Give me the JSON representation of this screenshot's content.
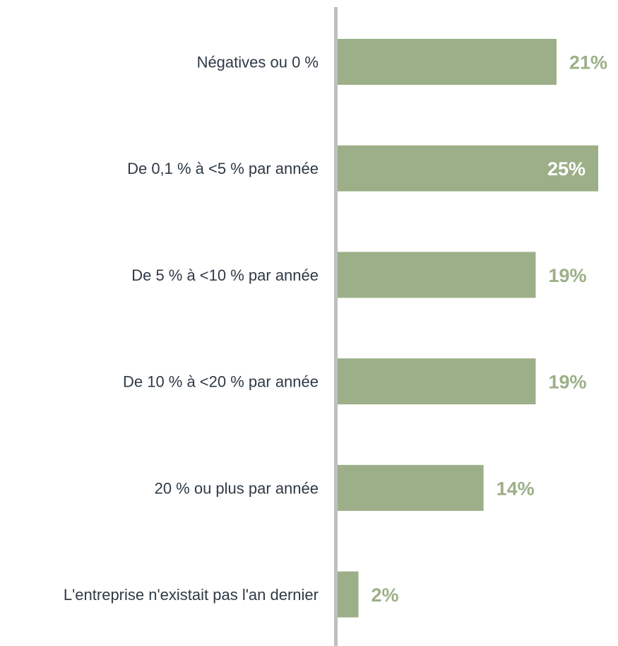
{
  "chart_data": {
    "type": "bar",
    "orientation": "horizontal",
    "categories": [
      "Négatives ou 0 %",
      "De 0,1 % à <5 % par année",
      "De 5 % à <10 % par année",
      "De 10 % à <20 % par année",
      "20 % ou plus par année",
      "L'entreprise n'existait pas l'an dernier"
    ],
    "values": [
      21,
      25,
      19,
      19,
      14,
      2
    ],
    "value_labels": [
      "21%",
      "25%",
      "19%",
      "19%",
      "14%",
      "2%"
    ],
    "value_unit": "%",
    "xlim": [
      0,
      25
    ],
    "grid": false,
    "legend": "none",
    "colors": {
      "bar": "#9caf88",
      "axis": "#bfbfbf",
      "label_outside": "#9caf88",
      "label_inside": "#ffffff",
      "category_text": "#2e3a46"
    }
  }
}
